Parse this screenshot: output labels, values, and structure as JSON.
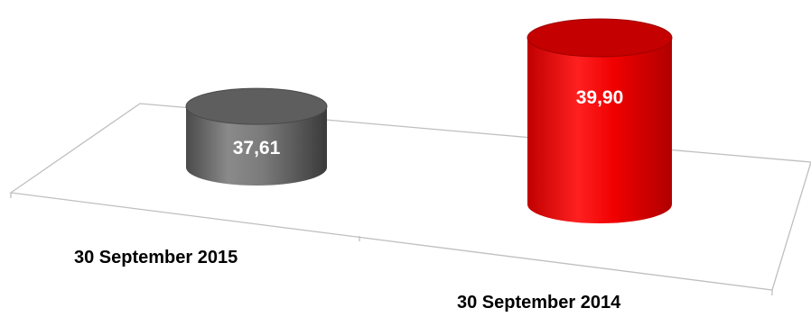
{
  "chart_data": {
    "type": "bar",
    "style": "3d-cylinder",
    "categories": [
      "30 September 2015",
      "30 September 2014"
    ],
    "values": [
      37.61,
      39.9
    ],
    "value_labels": [
      "37,61",
      "39,90"
    ],
    "colors": [
      "#808080",
      "#ff0000"
    ],
    "title": "",
    "xlabel": "",
    "ylabel": "",
    "grid": false,
    "legend": "none"
  }
}
